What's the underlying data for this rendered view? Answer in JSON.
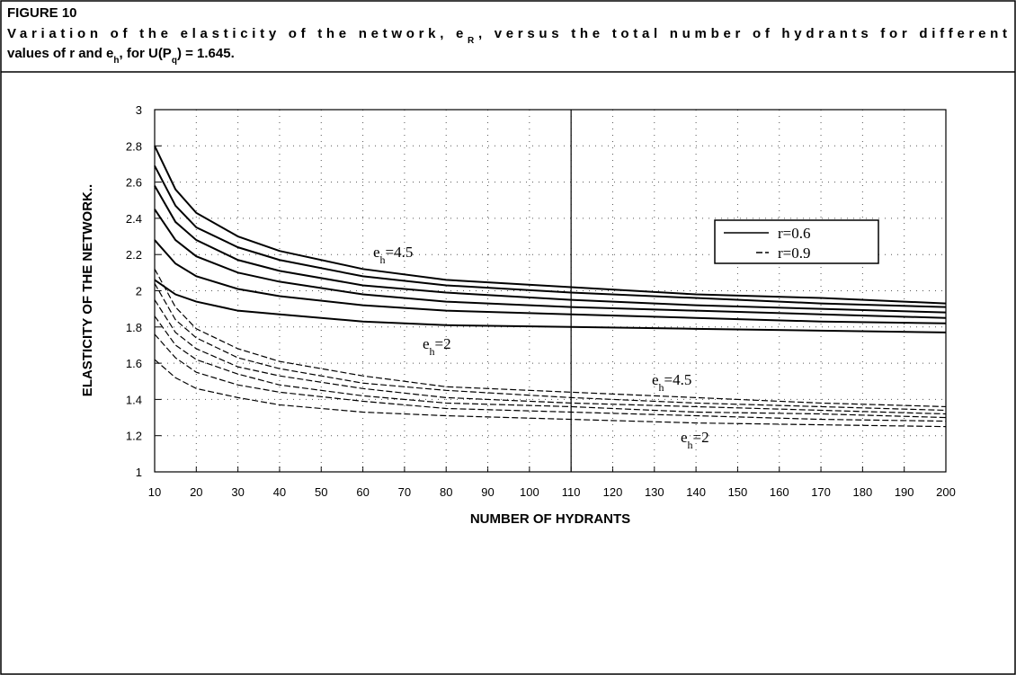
{
  "chart_data": {
    "type": "line",
    "figure_label": "FIGURE 10",
    "caption": [
      [
        "Variation of the elasticity of the network, e",
        "R",
        ", versus the total number of hydrants for different"
      ],
      [
        "values of r and e",
        "h",
        ", for U(P",
        "q",
        ") = 1.645."
      ]
    ],
    "x_label": "NUMBER OF HYDRANTS",
    "y_label": "ELASTICITY OF THE NETWORK..",
    "x": [
      10,
      15,
      20,
      30,
      40,
      60,
      80,
      110,
      140,
      170,
      200
    ],
    "series": [
      {
        "name": "r=0.6",
        "style": "solid",
        "color": "#000000",
        "lines": [
          [
            2.8,
            2.56,
            2.43,
            2.3,
            2.22,
            2.12,
            2.06,
            2.02,
            1.98,
            1.96,
            1.93
          ],
          [
            2.69,
            2.47,
            2.35,
            2.24,
            2.17,
            2.08,
            2.03,
            1.99,
            1.96,
            1.93,
            1.91
          ],
          [
            2.58,
            2.38,
            2.28,
            2.17,
            2.11,
            2.03,
            1.99,
            1.95,
            1.92,
            1.9,
            1.88
          ],
          [
            2.45,
            2.28,
            2.19,
            2.1,
            2.05,
            1.98,
            1.94,
            1.91,
            1.89,
            1.87,
            1.85
          ],
          [
            2.28,
            2.15,
            2.08,
            2.01,
            1.97,
            1.92,
            1.89,
            1.87,
            1.85,
            1.83,
            1.82
          ],
          [
            2.06,
            1.98,
            1.94,
            1.89,
            1.87,
            1.83,
            1.81,
            1.8,
            1.79,
            1.78,
            1.77
          ]
        ]
      },
      {
        "name": "r=0.9",
        "style": "dashed",
        "color": "#000000",
        "lines": [
          [
            2.12,
            1.91,
            1.79,
            1.68,
            1.61,
            1.53,
            1.47,
            1.44,
            1.41,
            1.38,
            1.36
          ],
          [
            2.04,
            1.84,
            1.74,
            1.63,
            1.57,
            1.49,
            1.45,
            1.41,
            1.38,
            1.36,
            1.34
          ],
          [
            1.95,
            1.77,
            1.68,
            1.58,
            1.53,
            1.46,
            1.41,
            1.38,
            1.36,
            1.34,
            1.32
          ],
          [
            1.86,
            1.7,
            1.62,
            1.54,
            1.48,
            1.42,
            1.38,
            1.36,
            1.33,
            1.32,
            1.3
          ],
          [
            1.76,
            1.63,
            1.55,
            1.48,
            1.44,
            1.39,
            1.35,
            1.33,
            1.31,
            1.29,
            1.28
          ],
          [
            1.62,
            1.52,
            1.46,
            1.41,
            1.37,
            1.33,
            1.31,
            1.29,
            1.27,
            1.26,
            1.25
          ]
        ]
      }
    ],
    "annotations": [
      [
        "e",
        "h",
        "=4.5"
      ],
      [
        "e",
        "h",
        "=2"
      ],
      [
        "e",
        "h",
        "=4.5"
      ],
      [
        "e",
        "h",
        "=2"
      ]
    ],
    "marker_x": 110,
    "xlim": [
      10,
      200
    ],
    "ylim": [
      1,
      3
    ],
    "xticks": [
      10,
      20,
      30,
      40,
      50,
      60,
      70,
      80,
      90,
      100,
      110,
      120,
      130,
      140,
      150,
      160,
      170,
      180,
      190,
      200
    ],
    "yticks": [
      1,
      1.2,
      1.4,
      1.6,
      1.8,
      2,
      2.2,
      2.4,
      2.6,
      2.8,
      3
    ],
    "grid": true,
    "legend": "top-right"
  }
}
